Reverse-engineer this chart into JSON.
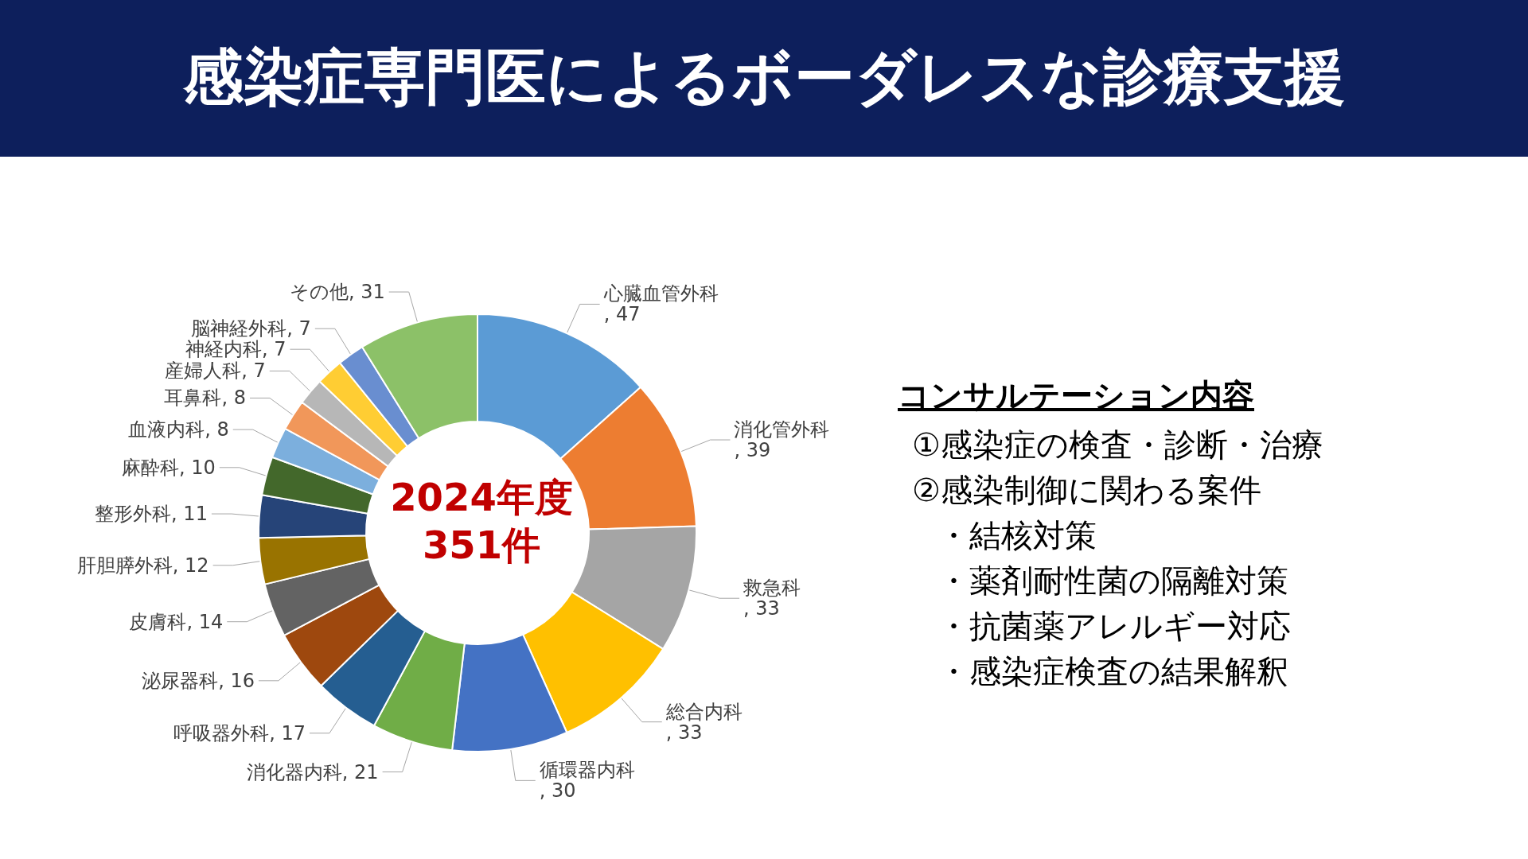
{
  "chart_data": [
    {
      "type": "donut",
      "title": "感染症専門医によるボーダレスな診療支援",
      "categories": [
        "心臓血管外科",
        "消化管外科",
        "救急科",
        "総合内科",
        "循環器内科",
        "消化器内科",
        "呼吸器外科",
        "泌尿器科",
        "皮膚科",
        "肝胆膵外科",
        "整形外科",
        "麻酔科",
        "血液内科",
        "耳鼻科",
        "産婦人科",
        "神経内科",
        "脳神経外科",
        "その他"
      ],
      "values": [
        47,
        39,
        33,
        33,
        30,
        21,
        17,
        16,
        14,
        12,
        11,
        10,
        8,
        8,
        7,
        7,
        7,
        31
      ],
      "colors": [
        "#5b9bd5",
        "#ed7d31",
        "#a5a5a5",
        "#ffc000",
        "#4472c4",
        "#70ad47",
        "#255e91",
        "#9e480e",
        "#636363",
        "#997300",
        "#264478",
        "#43682b",
        "#7cafdd",
        "#f1975a",
        "#b7b7b7",
        "#ffcd33",
        "#698ed0",
        "#8cc168"
      ],
      "value_labels": [
        ", 47",
        ", 39",
        ", 33",
        ", 33",
        ", 30",
        ", 21",
        ", 17",
        ", 16",
        ", 14",
        ", 12",
        ", 11",
        ", 10",
        ", 8",
        ", 8",
        ", 7",
        ", 7",
        ", 7",
        ", 31"
      ],
      "legend": false,
      "annotations": [
        "2024年度",
        "351件"
      ]
    },
    {
      "type": "other",
      "title": "コンサルテーション内容",
      "annotations": [
        "①感染症の検査・診断・治療",
        "②感染制御に関わる案件",
        "・結核対策",
        "・薬剤耐性菌の隔離対策",
        "・抗菌薬アレルギー対応",
        "・感染症検査の結果解釈"
      ]
    }
  ]
}
